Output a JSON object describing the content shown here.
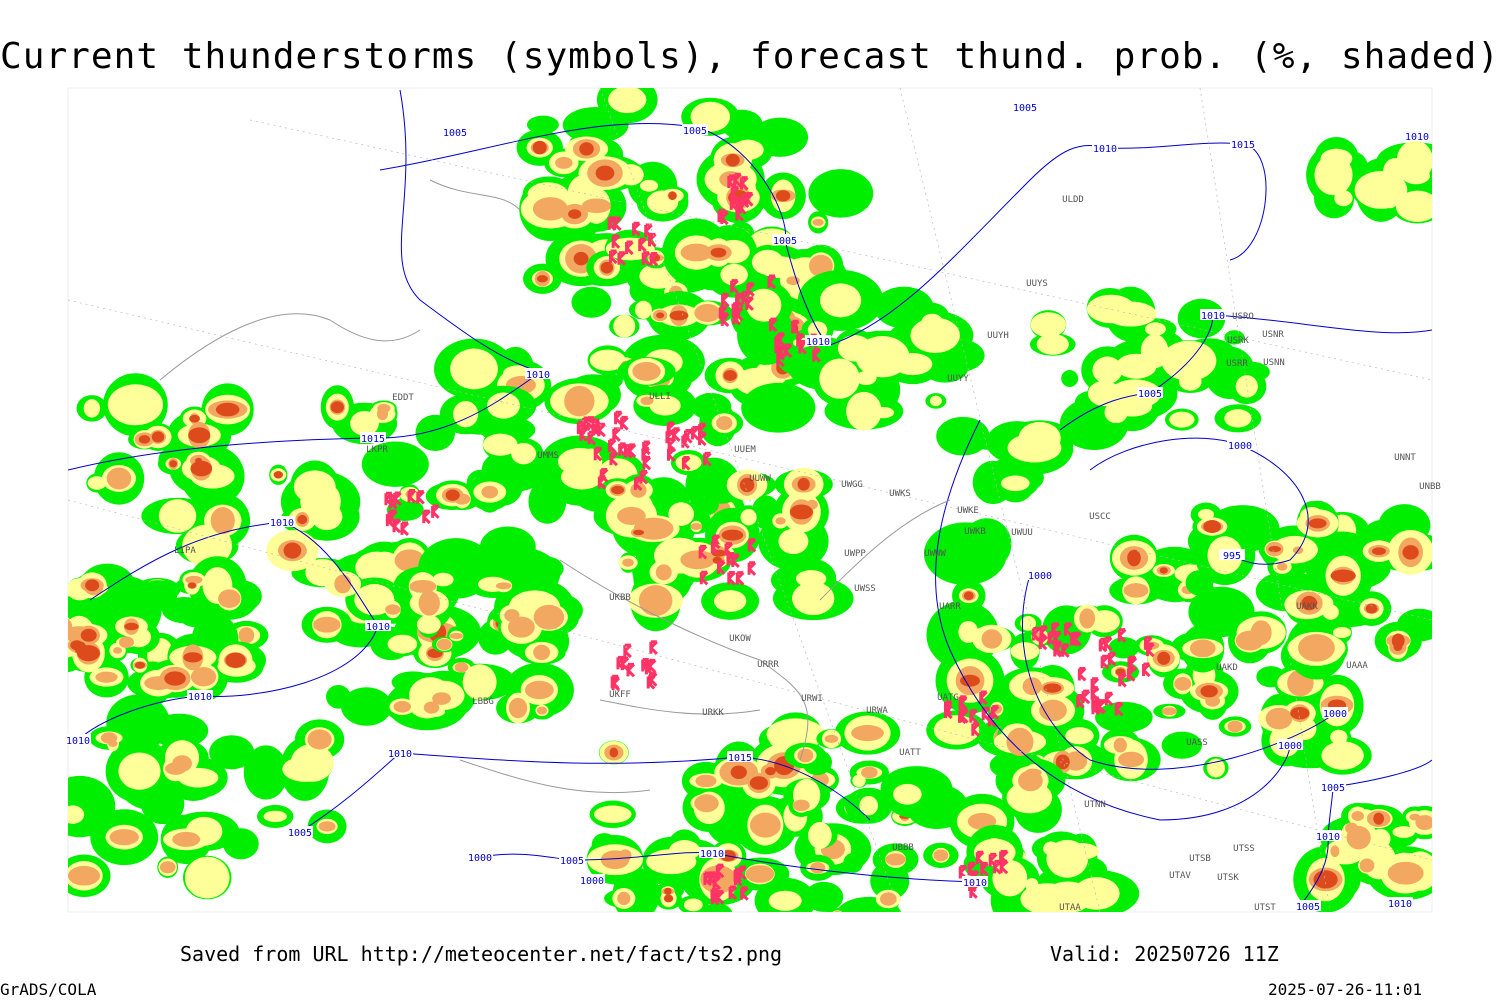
{
  "header": {
    "title": "Current thunderstorms (symbols), forecast thund. prob. (%, shaded)"
  },
  "map": {
    "isobar_labels": [
      "1005",
      "1005",
      "1005",
      "1010",
      "1015",
      "1010",
      "1005",
      "1010",
      "1010",
      "1015",
      "1010",
      "1010",
      "1005",
      "1000",
      "995",
      "1000",
      "1010",
      "1010",
      "1010",
      "1010",
      "1015",
      "1000",
      "1000",
      "1005",
      "1010",
      "1005",
      "1000",
      "1005",
      "1010",
      "1000",
      "1010",
      "1005",
      "1010"
    ],
    "stations": [
      "UUEM",
      "UUWW",
      "UWGG",
      "UWKS",
      "UWKE",
      "UWKB",
      "UWUU",
      "UWPP",
      "UWWW",
      "UWSS",
      "UARR",
      "UUYS",
      "UUYH",
      "UUYY",
      "ULDD",
      "USRR",
      "USNN",
      "USRK",
      "USNR",
      "USRO",
      "UNNT",
      "UNBB",
      "USCC",
      "UATG",
      "UATT",
      "URWI",
      "URWA",
      "UKFF",
      "URKK",
      "UKOW",
      "URRR",
      "UTNN",
      "UTSS",
      "UTSB",
      "UTAV",
      "UTSK",
      "UTST",
      "UTAA",
      "UBBB",
      "UAAA",
      "UAKK",
      "UAKD",
      "UASS",
      "ULLI",
      "UMMS",
      "EDDT",
      "LKPR",
      "LIPA",
      "LBBG",
      "UKBB"
    ]
  },
  "footer": {
    "source": "Saved from URL http://meteocenter.net/fact/ts2.png",
    "valid": "Valid: 20250726 11Z",
    "software": "GrADS/COLA",
    "timestamp": "2025-07-26-11:01"
  }
}
